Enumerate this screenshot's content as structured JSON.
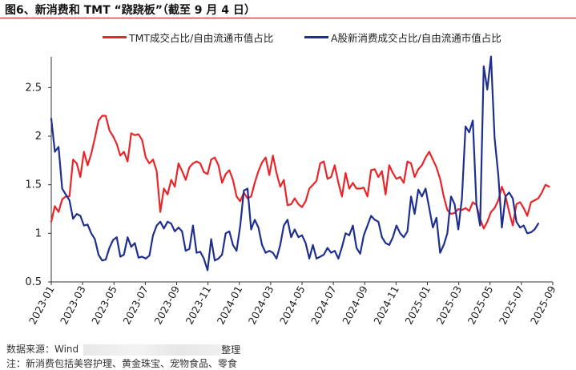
{
  "header": {
    "title": "图6、新消费和 TMT “跷跷板”（截至 9 月 4 日）"
  },
  "footer": {
    "source_label": "数据来源：Wind",
    "source_tail": "整理",
    "note": "注：新消费包括美容护理、黄金珠宝、宠物食品、零食"
  },
  "colors": {
    "tmt": "#e8262a",
    "new_consumer": "#1f2f8f",
    "title_rule": "#c81e1e"
  },
  "chart_data": {
    "type": "line",
    "title": "",
    "xlabel": "",
    "ylabel": "",
    "ylim": [
      0.5,
      2.8
    ],
    "yticks": [
      "0.5",
      "1",
      "1.5",
      "2",
      "2.5"
    ],
    "x_ticks": [
      "2023-01",
      "2023-03",
      "2023-05",
      "2023-07",
      "2023-09",
      "2023-11",
      "2024-01",
      "2024-03",
      "2024-05",
      "2024-07",
      "2024-09",
      "2024-11",
      "2025-01",
      "2025-03",
      "2025-05",
      "2025-07",
      "2025-09"
    ],
    "grid": false,
    "legend_position": "top",
    "series": [
      {
        "name": "TMT成交占比/自由流通市值占比",
        "color": "#e8262a",
        "points": [
          [
            0,
            1.12
          ],
          [
            1,
            1.28
          ],
          [
            2,
            1.22
          ],
          [
            3,
            1.35
          ],
          [
            4,
            1.38
          ],
          [
            5,
            1.38
          ],
          [
            6,
            1.76
          ],
          [
            7,
            1.72
          ],
          [
            8,
            1.58
          ],
          [
            9,
            1.84
          ],
          [
            10,
            1.7
          ],
          [
            11,
            1.82
          ],
          [
            12,
            1.98
          ],
          [
            13,
            2.16
          ],
          [
            14,
            2.21
          ],
          [
            15,
            2.21
          ],
          [
            16,
            2.06
          ],
          [
            17,
            2.0
          ],
          [
            18,
            1.92
          ],
          [
            19,
            1.8
          ],
          [
            20,
            1.84
          ],
          [
            21,
            1.74
          ],
          [
            22,
            2.03
          ],
          [
            23,
            2.01
          ],
          [
            24,
            2.02
          ],
          [
            25,
            1.96
          ],
          [
            26,
            1.78
          ],
          [
            27,
            1.72
          ],
          [
            28,
            1.76
          ],
          [
            29,
            1.64
          ],
          [
            30,
            1.22
          ],
          [
            31,
            1.46
          ],
          [
            32,
            1.4
          ],
          [
            33,
            1.55
          ],
          [
            34,
            1.48
          ],
          [
            35,
            1.72
          ],
          [
            36,
            1.64
          ],
          [
            37,
            1.55
          ],
          [
            38,
            1.68
          ],
          [
            39,
            1.72
          ],
          [
            40,
            1.74
          ],
          [
            41,
            1.72
          ],
          [
            42,
            1.63
          ],
          [
            43,
            1.61
          ],
          [
            44,
            1.76
          ],
          [
            45,
            1.78
          ],
          [
            46,
            1.7
          ],
          [
            47,
            1.52
          ],
          [
            48,
            1.61
          ],
          [
            49,
            1.65
          ],
          [
            50,
            1.55
          ],
          [
            51,
            1.38
          ],
          [
            52,
            1.33
          ],
          [
            53,
            1.42
          ],
          [
            54,
            1.36
          ],
          [
            55,
            1.38
          ],
          [
            56,
            1.52
          ],
          [
            57,
            1.64
          ],
          [
            58,
            1.73
          ],
          [
            59,
            1.78
          ],
          [
            60,
            1.6
          ],
          [
            61,
            1.8
          ],
          [
            62,
            1.62
          ],
          [
            63,
            1.48
          ],
          [
            64,
            1.55
          ],
          [
            65,
            1.29
          ],
          [
            66,
            1.3
          ],
          [
            67,
            1.36
          ],
          [
            68,
            1.3
          ],
          [
            69,
            1.27
          ],
          [
            70,
            1.33
          ],
          [
            71,
            1.46
          ],
          [
            72,
            1.5
          ],
          [
            73,
            1.54
          ],
          [
            74,
            1.72
          ],
          [
            75,
            1.74
          ],
          [
            76,
            1.56
          ],
          [
            77,
            1.58
          ],
          [
            78,
            1.7
          ],
          [
            79,
            1.52
          ],
          [
            80,
            1.38
          ],
          [
            81,
            1.62
          ],
          [
            82,
            1.46
          ],
          [
            83,
            1.52
          ],
          [
            84,
            1.46
          ],
          [
            85,
            1.46
          ],
          [
            86,
            1.47
          ],
          [
            87,
            1.38
          ],
          [
            88,
            1.65
          ],
          [
            89,
            1.66
          ],
          [
            90,
            1.58
          ],
          [
            91,
            1.64
          ],
          [
            92,
            1.4
          ],
          [
            93,
            1.7
          ],
          [
            94,
            1.62
          ],
          [
            95,
            1.56
          ],
          [
            96,
            1.58
          ],
          [
            97,
            1.52
          ],
          [
            98,
            1.74
          ],
          [
            99,
            1.72
          ],
          [
            100,
            1.58
          ],
          [
            101,
            1.66
          ],
          [
            102,
            1.7
          ],
          [
            103,
            1.78
          ],
          [
            104,
            1.84
          ],
          [
            105,
            1.76
          ],
          [
            106,
            1.68
          ],
          [
            107,
            1.56
          ],
          [
            108,
            1.38
          ],
          [
            109,
            1.24
          ],
          [
            110,
            1.2
          ],
          [
            111,
            1.21
          ],
          [
            112,
            1.25
          ],
          [
            113,
            1.24
          ],
          [
            114,
            1.26
          ],
          [
            115,
            1.23
          ],
          [
            116,
            1.32
          ],
          [
            117,
            1.29
          ],
          [
            118,
            1.15
          ],
          [
            119,
            1.05
          ],
          [
            120,
            1.12
          ],
          [
            121,
            1.22
          ],
          [
            122,
            1.26
          ],
          [
            123,
            1.34
          ],
          [
            124,
            1.48
          ],
          [
            125,
            1.38
          ],
          [
            126,
            1.22
          ],
          [
            127,
            1.08
          ],
          [
            128,
            1.3
          ],
          [
            129,
            1.32
          ],
          [
            130,
            1.26
          ],
          [
            131,
            1.18
          ],
          [
            132,
            1.32
          ],
          [
            133,
            1.34
          ],
          [
            134,
            1.36
          ],
          [
            135,
            1.42
          ],
          [
            136,
            1.5
          ],
          [
            137,
            1.48
          ]
        ]
      },
      {
        "name": "A股新消费成交占比/自由流通市值占比",
        "color": "#1f2f8f",
        "points": [
          [
            0,
            2.18
          ],
          [
            1,
            1.84
          ],
          [
            2,
            1.89
          ],
          [
            3,
            1.46
          ],
          [
            4,
            1.4
          ],
          [
            5,
            1.34
          ],
          [
            6,
            1.15
          ],
          [
            7,
            1.2
          ],
          [
            8,
            1.18
          ],
          [
            9,
            1.08
          ],
          [
            10,
            1.09
          ],
          [
            11,
            1.0
          ],
          [
            12,
            0.94
          ],
          [
            13,
            0.78
          ],
          [
            14,
            0.72
          ],
          [
            15,
            0.73
          ],
          [
            16,
            0.85
          ],
          [
            17,
            0.93
          ],
          [
            18,
            0.96
          ],
          [
            19,
            0.76
          ],
          [
            20,
            0.78
          ],
          [
            21,
            0.96
          ],
          [
            22,
            0.86
          ],
          [
            23,
            0.9
          ],
          [
            24,
            0.75
          ],
          [
            25,
            0.76
          ],
          [
            26,
            0.74
          ],
          [
            27,
            0.77
          ],
          [
            28,
            0.98
          ],
          [
            29,
            1.08
          ],
          [
            30,
            1.12
          ],
          [
            31,
            1.05
          ],
          [
            32,
            1.12
          ],
          [
            33,
            1.1
          ],
          [
            34,
            1.02
          ],
          [
            35,
            1.06
          ],
          [
            36,
            1.02
          ],
          [
            37,
            0.82
          ],
          [
            38,
            0.84
          ],
          [
            39,
            1.08
          ],
          [
            40,
            0.8
          ],
          [
            41,
            0.81
          ],
          [
            42,
            0.74
          ],
          [
            43,
            0.62
          ],
          [
            44,
            0.94
          ],
          [
            45,
            0.72
          ],
          [
            46,
            0.74
          ],
          [
            47,
            0.78
          ],
          [
            48,
            1.0
          ],
          [
            49,
            1.02
          ],
          [
            50,
            0.88
          ],
          [
            51,
            0.82
          ],
          [
            52,
            1.08
          ],
          [
            53,
            1.44
          ],
          [
            54,
            1.46
          ],
          [
            55,
            1.04
          ],
          [
            56,
            1.14
          ],
          [
            57,
            1.06
          ],
          [
            58,
            0.88
          ],
          [
            59,
            0.8
          ],
          [
            60,
            0.82
          ],
          [
            61,
            0.8
          ],
          [
            62,
            0.74
          ],
          [
            63,
            0.88
          ],
          [
            64,
            1.08
          ],
          [
            65,
            1.14
          ],
          [
            66,
            0.96
          ],
          [
            67,
            1.04
          ],
          [
            68,
            0.96
          ],
          [
            69,
            0.98
          ],
          [
            70,
            0.9
          ],
          [
            71,
            0.74
          ],
          [
            72,
            0.88
          ],
          [
            73,
            0.74
          ],
          [
            74,
            0.76
          ],
          [
            75,
            0.78
          ],
          [
            76,
            0.85
          ],
          [
            77,
            0.8
          ],
          [
            78,
            0.82
          ],
          [
            79,
            0.74
          ],
          [
            80,
            0.86
          ],
          [
            81,
            1.0
          ],
          [
            82,
            0.98
          ],
          [
            83,
            1.08
          ],
          [
            84,
            0.85
          ],
          [
            85,
            0.79
          ],
          [
            86,
            0.98
          ],
          [
            87,
            1.08
          ],
          [
            88,
            1.18
          ],
          [
            89,
            1.14
          ],
          [
            90,
            1.12
          ],
          [
            91,
            0.96
          ],
          [
            92,
            0.9
          ],
          [
            93,
            0.88
          ],
          [
            94,
            0.96
          ],
          [
            95,
            1.08
          ],
          [
            96,
            1.0
          ],
          [
            97,
            0.96
          ],
          [
            98,
            1.02
          ],
          [
            99,
            1.38
          ],
          [
            100,
            1.2
          ],
          [
            101,
            1.45
          ],
          [
            102,
            1.38
          ],
          [
            103,
            1.46
          ],
          [
            104,
            1.26
          ],
          [
            105,
            1.06
          ],
          [
            106,
            1.16
          ],
          [
            107,
            0.8
          ],
          [
            108,
            0.88
          ],
          [
            109,
            1.0
          ],
          [
            110,
            1.38
          ],
          [
            111,
            1.3
          ],
          [
            112,
            1.04
          ],
          [
            113,
            1.36
          ],
          [
            114,
            2.1
          ],
          [
            115,
            2.04
          ],
          [
            116,
            2.16
          ],
          [
            117,
            1.3
          ],
          [
            118,
            1.08
          ],
          [
            119,
            2.72
          ],
          [
            120,
            2.48
          ],
          [
            121,
            2.82
          ],
          [
            122,
            1.98
          ],
          [
            123,
            1.6
          ],
          [
            124,
            1.06
          ],
          [
            125,
            1.38
          ],
          [
            126,
            1.42
          ],
          [
            127,
            1.36
          ],
          [
            128,
            1.12
          ],
          [
            129,
            1.06
          ],
          [
            130,
            1.08
          ],
          [
            131,
            1.0
          ],
          [
            132,
            1.01
          ],
          [
            133,
            1.04
          ],
          [
            134,
            1.1
          ]
        ]
      }
    ]
  }
}
